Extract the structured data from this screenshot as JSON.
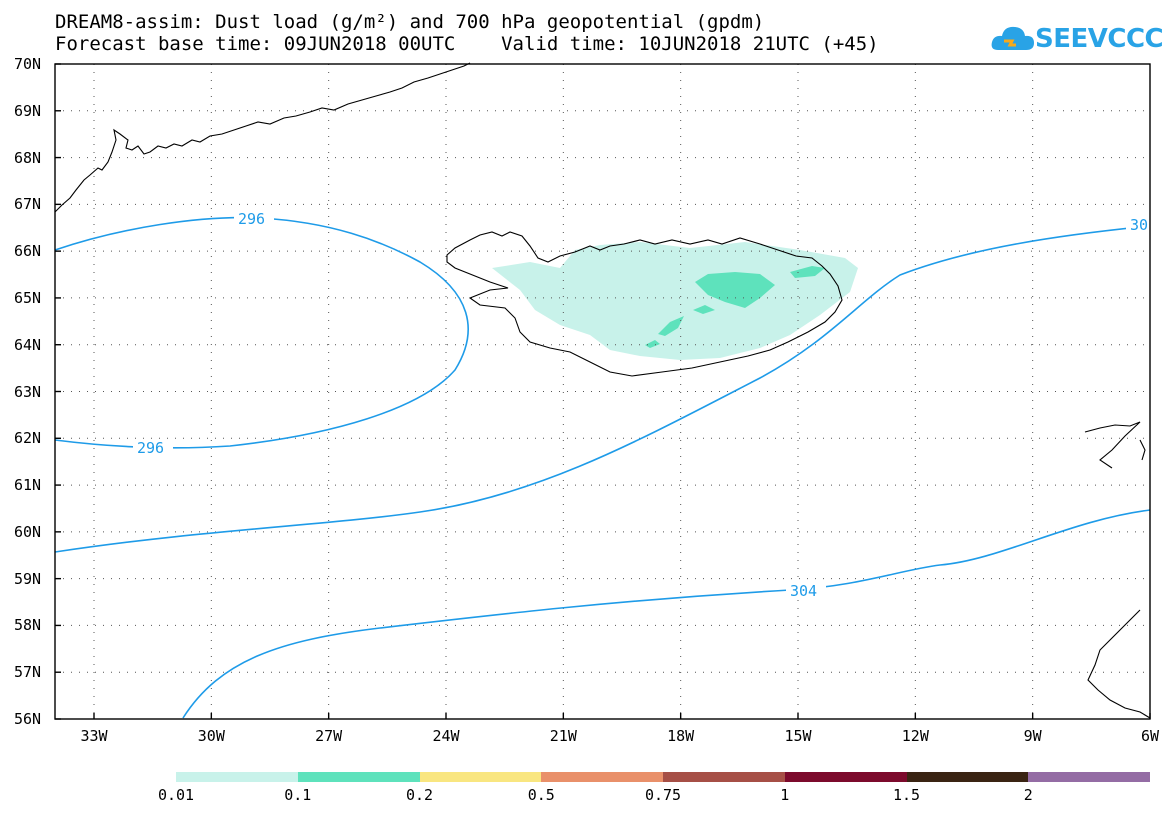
{
  "title": {
    "line1": "DREAM8-assim: Dust load (g/m²) and 700 hPa geopotential (gpdm)",
    "line2": "Forecast base time: 09JUN2018 00UTC    Valid time: 10JUN2018 21UTC (+45)"
  },
  "logo": {
    "text": "SEEVCCC",
    "icon": "cloud-logo-icon"
  },
  "axes": {
    "lat_ticks": [
      "70N",
      "69N",
      "68N",
      "67N",
      "66N",
      "65N",
      "64N",
      "63N",
      "62N",
      "61N",
      "60N",
      "59N",
      "58N",
      "57N",
      "56N"
    ],
    "lon_ticks": [
      "33W",
      "30W",
      "27W",
      "24W",
      "21W",
      "18W",
      "15W",
      "12W",
      "9W",
      "6W"
    ]
  },
  "contours": {
    "labels": [
      "296",
      "296",
      "304",
      "30"
    ],
    "color": "#1e9be8"
  },
  "legend": {
    "labels": [
      "0.01",
      "0.1",
      "0.2",
      "0.5",
      "0.75",
      "1",
      "1.5",
      "2"
    ],
    "colors": [
      "#c8f2ea",
      "#5ee2bc",
      "#f9e680",
      "#e9906a",
      "#a64f46",
      "#7c0a2c",
      "#3a2413",
      "#946ca4"
    ]
  },
  "dust_colors": {
    "light": "#c8f2ea",
    "medium": "#5ee2bc"
  }
}
